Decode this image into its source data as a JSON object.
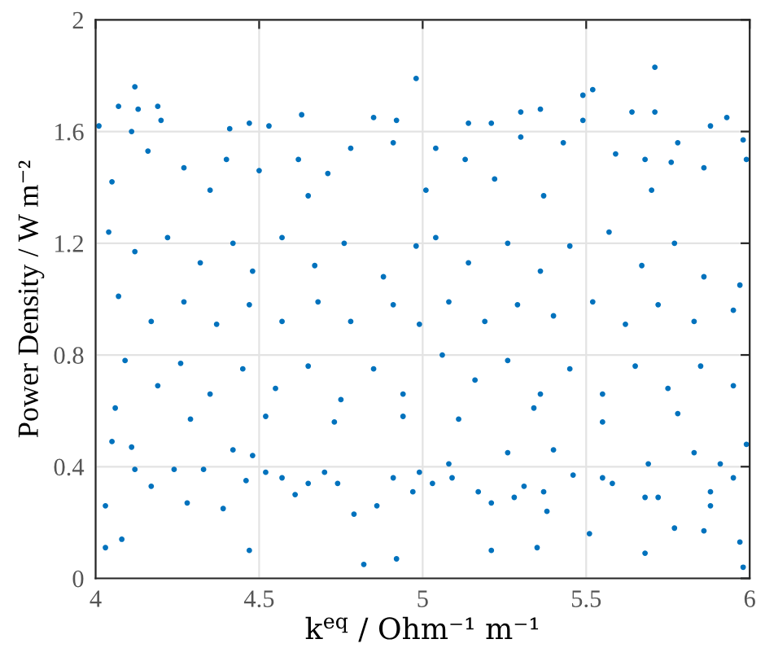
{
  "chart_data": {
    "type": "scatter",
    "xlabel": "k$^{eq}$ / Ohm⁻¹ m⁻¹",
    "ylabel": "Power Density / W m⁻²",
    "xlim": [
      4,
      6
    ],
    "ylim": [
      0,
      2
    ],
    "xticks": [
      4,
      4.5,
      5,
      5.5,
      6
    ],
    "yticks": [
      0,
      0.4,
      0.8,
      1.2,
      1.6,
      2
    ],
    "grid": true,
    "marker": "circle",
    "color": "#0072bd",
    "x": [
      4.98,
      5.71,
      5.52,
      5.49,
      4.12,
      4.07,
      4.13,
      4.19,
      4.2,
      4.01,
      4.11,
      4.85,
      4.63,
      5.3,
      5.36,
      5.64,
      5.71,
      5.93,
      5.88,
      4.92,
      5.14,
      5.21,
      4.41,
      4.47,
      4.53,
      5.49,
      5.78,
      5.98,
      4.12,
      4.17,
      4.03,
      4.28,
      4.39,
      4.24,
      4.33,
      4.42,
      4.48,
      4.46,
      4.52,
      4.57,
      4.61,
      4.65,
      4.7,
      4.74,
      4.79,
      4.86,
      4.91,
      4.97,
      4.99,
      4.11,
      4.05,
      5.03,
      5.08,
      5.09,
      5.17,
      5.21,
      5.28,
      5.31,
      5.37,
      5.38,
      5.46,
      5.4,
      5.26,
      5.55,
      5.58,
      5.68,
      5.72,
      5.69,
      5.83,
      5.88,
      5.88,
      5.91,
      5.95,
      5.99,
      4.04,
      4.12,
      4.22,
      4.32,
      4.42,
      4.48,
      4.57,
      4.67,
      4.76,
      4.88,
      4.98,
      4.07,
      4.17,
      4.27,
      4.37,
      4.47,
      4.57,
      4.68,
      4.78,
      4.91,
      4.99,
      4.09,
      4.19,
      4.26,
      4.35,
      4.45,
      4.55,
      4.65,
      4.75,
      4.85,
      4.94,
      4.06,
      4.29,
      4.52,
      4.73,
      4.94,
      5.04,
      5.14,
      5.26,
      5.36,
      5.45,
      5.57,
      5.67,
      5.77,
      5.86,
      5.97,
      5.08,
      5.19,
      5.29,
      5.4,
      5.52,
      5.62,
      5.72,
      5.83,
      5.95,
      5.06,
      5.16,
      5.26,
      5.36,
      5.45,
      5.55,
      5.65,
      5.75,
      5.85,
      5.95,
      5.11,
      5.34,
      5.55,
      5.78,
      4.05,
      4.16,
      4.27,
      4.4,
      4.5,
      4.62,
      4.71,
      4.78,
      4.91,
      5.04,
      5.13,
      5.22,
      5.3,
      5.43,
      5.59,
      5.68,
      5.76,
      5.86,
      5.99,
      4.35,
      4.65,
      5.01,
      5.37,
      5.7,
      4.03,
      4.08,
      4.47,
      4.82,
      4.92,
      5.21,
      5.35,
      5.51,
      5.68,
      5.77,
      5.86,
      5.97,
      5.98
    ],
    "values": [
      1.79,
      1.83,
      1.75,
      1.73,
      1.76,
      1.69,
      1.68,
      1.69,
      1.64,
      1.62,
      1.6,
      1.65,
      1.66,
      1.67,
      1.68,
      1.67,
      1.67,
      1.65,
      1.62,
      1.64,
      1.63,
      1.63,
      1.61,
      1.63,
      1.62,
      1.64,
      1.56,
      1.57,
      0.39,
      0.33,
      0.26,
      0.27,
      0.25,
      0.39,
      0.39,
      0.46,
      0.44,
      0.35,
      0.38,
      0.36,
      0.3,
      0.34,
      0.38,
      0.34,
      0.23,
      0.26,
      0.36,
      0.31,
      0.38,
      0.47,
      0.49,
      0.34,
      0.41,
      0.36,
      0.31,
      0.27,
      0.29,
      0.33,
      0.31,
      0.24,
      0.37,
      0.46,
      0.45,
      0.36,
      0.34,
      0.29,
      0.29,
      0.41,
      0.45,
      0.31,
      0.26,
      0.41,
      0.36,
      0.48,
      1.24,
      1.17,
      1.22,
      1.13,
      1.2,
      1.1,
      1.22,
      1.12,
      1.2,
      1.08,
      1.19,
      1.01,
      0.92,
      0.99,
      0.91,
      0.98,
      0.92,
      0.99,
      0.92,
      0.98,
      0.91,
      0.78,
      0.69,
      0.77,
      0.66,
      0.75,
      0.68,
      0.76,
      0.64,
      0.75,
      0.66,
      0.61,
      0.57,
      0.58,
      0.56,
      0.58,
      1.22,
      1.13,
      1.2,
      1.1,
      1.19,
      1.24,
      1.12,
      1.2,
      1.08,
      1.05,
      0.99,
      0.92,
      0.98,
      0.94,
      0.99,
      0.91,
      0.98,
      0.92,
      0.96,
      0.8,
      0.71,
      0.78,
      0.66,
      0.75,
      0.66,
      0.76,
      0.68,
      0.76,
      0.69,
      0.57,
      0.61,
      0.56,
      0.59,
      1.42,
      1.53,
      1.47,
      1.5,
      1.46,
      1.5,
      1.45,
      1.54,
      1.56,
      1.54,
      1.5,
      1.43,
      1.58,
      1.56,
      1.52,
      1.5,
      1.49,
      1.47,
      1.5,
      1.39,
      1.37,
      1.39,
      1.37,
      1.39,
      0.11,
      0.14,
      0.1,
      0.05,
      0.07,
      0.1,
      0.11,
      0.16,
      0.09,
      0.18,
      0.17,
      0.13,
      0.04
    ]
  }
}
